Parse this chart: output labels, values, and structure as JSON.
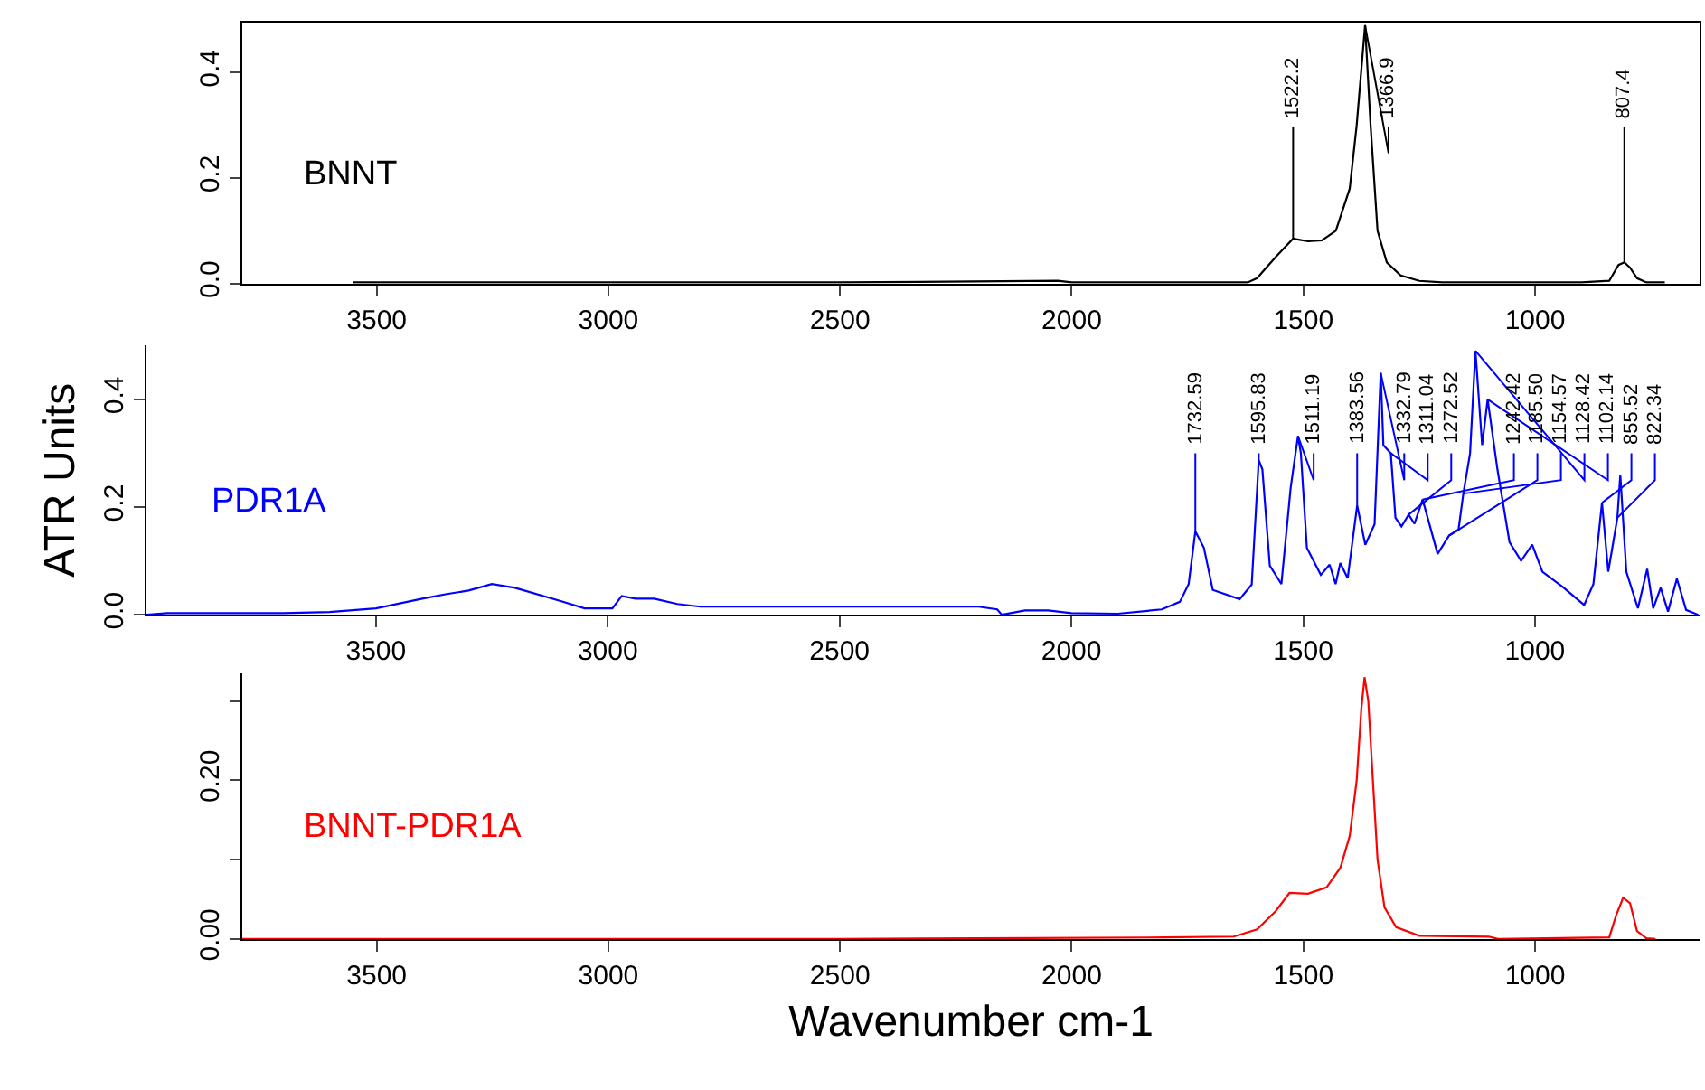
{
  "chart_data": [
    {
      "type": "line",
      "xlim": [
        3790,
        645
      ],
      "xticks": [
        3500,
        3000,
        2500,
        2000,
        1500,
        1000
      ],
      "ylim": [
        0,
        0.494
      ],
      "yticks": [
        {
          "value": 0,
          "label": "0.0"
        },
        {
          "value": 0.2,
          "label": "0.2"
        },
        {
          "value": 0.4,
          "label": "0.4"
        }
      ],
      "marker": "none",
      "line_style": "solid",
      "x": [
        3550,
        3000,
        2500,
        2030,
        2000,
        1700,
        1620,
        1600,
        1560,
        1522.2,
        1490,
        1460,
        1430,
        1400,
        1385,
        1366.9,
        1355,
        1340,
        1320,
        1290,
        1250,
        1200,
        900,
        840,
        820,
        807.4,
        795,
        780,
        760,
        720
      ],
      "series": [
        {
          "name": "BNNT",
          "color": "#000000",
          "values": [
            0.002,
            0.002,
            0.002,
            0.005,
            0.002,
            0.002,
            0.002,
            0.01,
            0.05,
            0.085,
            0.08,
            0.082,
            0.1,
            0.18,
            0.3,
            0.49,
            0.3,
            0.1,
            0.04,
            0.015,
            0.005,
            0.002,
            0.002,
            0.005,
            0.035,
            0.04,
            0.03,
            0.01,
            0.002,
            0.002
          ]
        }
      ],
      "annotations": [
        {
          "text": "1522.2",
          "x": 1522.2,
          "y": 0.085
        },
        {
          "text": "1366.9",
          "x": 1366.9,
          "y": 0.49
        },
        {
          "text": "807.4",
          "x": 807.4,
          "y": 0.04
        }
      ]
    },
    {
      "type": "line",
      "xlim": [
        3995,
        645
      ],
      "xticks": [
        3500,
        3000,
        2500,
        2000,
        1500,
        1000
      ],
      "ylim": [
        0,
        0.5
      ],
      "yticks": [
        {
          "value": 0,
          "label": "0.0"
        },
        {
          "value": 0.2,
          "label": "0.2"
        },
        {
          "value": 0.4,
          "label": "0.4"
        }
      ],
      "ylabel": "ATR Units",
      "marker": "none",
      "line_style": "solid",
      "x": [
        3995,
        3950,
        3700,
        3600,
        3500,
        3400,
        3350,
        3300,
        3250,
        3200,
        3100,
        3050,
        2990,
        2970,
        2940,
        2900,
        2850,
        2800,
        2500,
        2200,
        2160,
        2150,
        2100,
        2050,
        2000,
        1900,
        1805,
        1766,
        1747,
        1732.59,
        1714,
        1695,
        1637,
        1611,
        1595.83,
        1588,
        1572,
        1547,
        1527,
        1511.19,
        1505,
        1492,
        1462,
        1443,
        1430,
        1420,
        1404,
        1383.56,
        1366,
        1346,
        1332.79,
        1327,
        1311.04,
        1301,
        1288,
        1272.52,
        1260,
        1242.42,
        1210,
        1185.5,
        1165,
        1154.57,
        1140,
        1128.42,
        1114,
        1102.14,
        1081,
        1055,
        1030,
        1006,
        984,
        939,
        894,
        874,
        855.52,
        842,
        822.34,
        816,
        803,
        778,
        758,
        745,
        729,
        713,
        694,
        674,
        648
      ],
      "series": [
        {
          "name": "PDR1A",
          "color": "#0000ff",
          "values": [
            0.0,
            0.003,
            0.003,
            0.005,
            0.012,
            0.03,
            0.038,
            0.045,
            0.057,
            0.05,
            0.025,
            0.012,
            0.012,
            0.035,
            0.03,
            0.03,
            0.02,
            0.015,
            0.015,
            0.015,
            0.01,
            0.0,
            0.008,
            0.008,
            0.003,
            0.002,
            0.01,
            0.024,
            0.057,
            0.155,
            0.124,
            0.046,
            0.029,
            0.056,
            0.287,
            0.27,
            0.091,
            0.057,
            0.236,
            0.332,
            0.3,
            0.124,
            0.074,
            0.093,
            0.057,
            0.096,
            0.068,
            0.203,
            0.13,
            0.168,
            0.449,
            0.315,
            0.3,
            0.18,
            0.164,
            0.186,
            0.169,
            0.214,
            0.113,
            0.147,
            0.158,
            0.225,
            0.3,
            0.49,
            0.315,
            0.4,
            0.27,
            0.135,
            0.1,
            0.13,
            0.08,
            0.051,
            0.018,
            0.057,
            0.208,
            0.08,
            0.18,
            0.26,
            0.08,
            0.012,
            0.085,
            0.012,
            0.05,
            0.006,
            0.067,
            0.009,
            0.0
          ]
        }
      ],
      "annotations": [
        {
          "text": "1732.59",
          "x": 1732.59,
          "y": 0.155
        },
        {
          "text": "1595.83",
          "x": 1595.83,
          "y": 0.287
        },
        {
          "text": "1511.19",
          "x": 1511.19,
          "y": 0.332
        },
        {
          "text": "1383.56",
          "x": 1383.56,
          "y": 0.203
        },
        {
          "text": "1332.79",
          "x": 1332.79,
          "y": 0.449
        },
        {
          "text": "1311.04",
          "x": 1311.04,
          "y": 0.3
        },
        {
          "text": "1272.52",
          "x": 1272.52,
          "y": 0.186
        },
        {
          "text": "1242.42",
          "x": 1242.42,
          "y": 0.214
        },
        {
          "text": "1185.50",
          "x": 1185.5,
          "y": 0.147
        },
        {
          "text": "1154.57",
          "x": 1154.57,
          "y": 0.225
        },
        {
          "text": "1128.42",
          "x": 1128.42,
          "y": 0.49
        },
        {
          "text": "1102.14",
          "x": 1102.14,
          "y": 0.4
        },
        {
          "text": "855.52",
          "x": 855.52,
          "y": 0.208
        },
        {
          "text": "822.34",
          "x": 822.34,
          "y": 0.18
        }
      ]
    },
    {
      "type": "line",
      "xlim": [
        3790,
        645
      ],
      "xticks": [
        3500,
        3000,
        2500,
        2000,
        1500,
        1000
      ],
      "ylim": [
        0,
        0.335
      ],
      "yticks": [
        {
          "value": 0,
          "label": "0.00"
        },
        {
          "value": 0.1,
          "label": null
        },
        {
          "value": 0.2,
          "label": "0.20"
        },
        {
          "value": 0.3,
          "label": null
        }
      ],
      "xlabel": "Wavenumber cm-1",
      "marker": "none",
      "line_style": "solid",
      "x": [
        3790,
        2500,
        1800,
        1650,
        1600,
        1560,
        1530,
        1490,
        1450,
        1420,
        1400,
        1385,
        1375,
        1368,
        1360,
        1350,
        1340,
        1325,
        1300,
        1250,
        1100,
        1080,
        840,
        825,
        810,
        795,
        780,
        760,
        740
      ],
      "series": [
        {
          "name": "BNNT-PDR1A",
          "color": "#ff0000",
          "values": [
            0.0,
            0.0,
            0.002,
            0.003,
            0.012,
            0.035,
            0.058,
            0.057,
            0.065,
            0.09,
            0.13,
            0.2,
            0.29,
            0.33,
            0.3,
            0.2,
            0.1,
            0.04,
            0.015,
            0.004,
            0.003,
            0.0,
            0.002,
            0.03,
            0.052,
            0.045,
            0.01,
            0.001,
            0.0
          ]
        }
      ]
    }
  ]
}
